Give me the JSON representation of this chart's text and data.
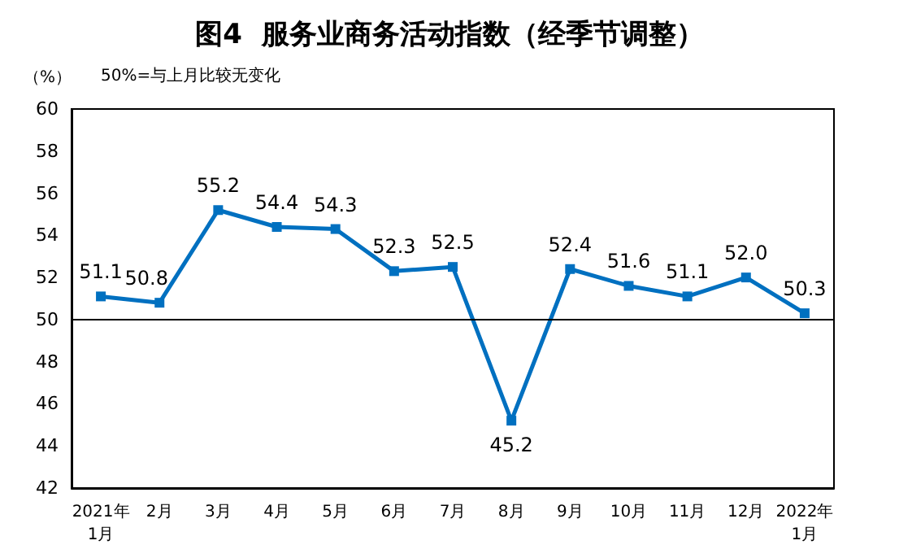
{
  "chart_data": {
    "type": "line",
    "title": "图4  服务业商务活动指数（经季节调整）",
    "ylabel": "（%）",
    "annotations": [
      "50%=与上月比较无变化"
    ],
    "categories": [
      "2021年\n1月",
      "2月",
      "3月",
      "4月",
      "5月",
      "6月",
      "7月",
      "8月",
      "9月",
      "10月",
      "11月",
      "12月",
      "2022年\n1月"
    ],
    "series": [
      {
        "color": "#0070c0",
        "values": [
          51.1,
          50.8,
          55.2,
          54.4,
          54.3,
          52.3,
          52.5,
          45.2,
          52.4,
          51.6,
          51.1,
          52.0,
          50.3
        ]
      }
    ],
    "value_labels": [
      "51.1",
      "50.8",
      "55.2",
      "54.4",
      "54.3",
      "52.3",
      "52.5",
      "45.2",
      "52.4",
      "51.6",
      "51.1",
      "52.0",
      "50.3"
    ],
    "ylim": [
      42,
      60
    ],
    "yticks": [
      42,
      44,
      46,
      48,
      50,
      52,
      54,
      56,
      58,
      60
    ],
    "grid": false,
    "marker": "square",
    "line_style": "solid",
    "ref_lines": [
      {
        "axis": "y",
        "value": 50,
        "color": "#000000"
      }
    ]
  }
}
